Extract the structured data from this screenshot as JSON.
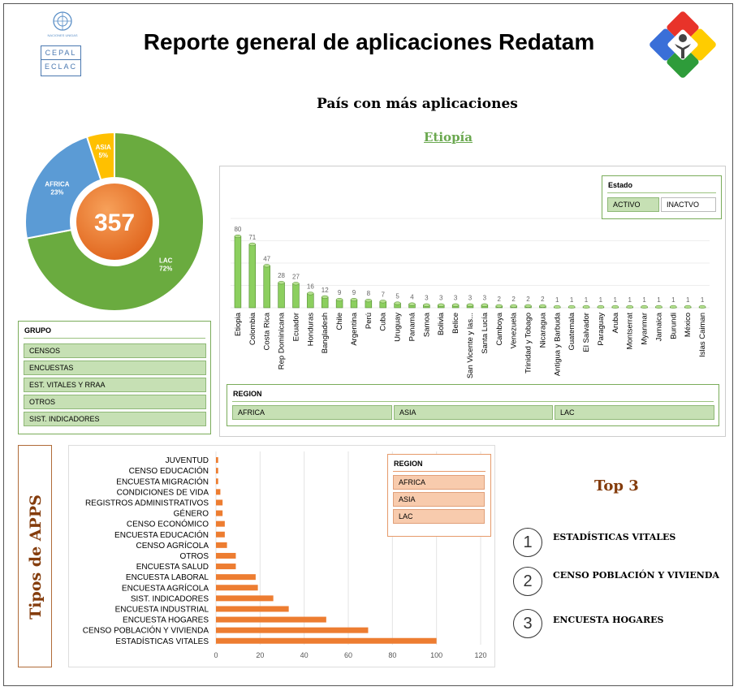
{
  "header": {
    "title": "Reporte general de aplicaciones Redatam",
    "cepal_text": "CEPAL",
    "eclac_text": "ECLAC",
    "un_text": "NACIONES UNIDAS"
  },
  "top_country": {
    "heading": "País con más aplicaciones",
    "name": "Etiopía"
  },
  "donut": {
    "total": "357",
    "segments": [
      {
        "label": "LAC",
        "percent": "72%",
        "value": 72,
        "color": "#6aab3f"
      },
      {
        "label": "AFRICA",
        "percent": "23%",
        "value": 23,
        "color": "#5b9bd5"
      },
      {
        "label": "ASIA",
        "percent": "5%",
        "value": 5,
        "color": "#ffc000"
      }
    ]
  },
  "grupo_slicer": {
    "title": "GRUPO",
    "items": [
      "CENSOS",
      "ENCUESTAS",
      "EST. VITALES  Y RRAA",
      "OTROS",
      "SIST. INDICADORES"
    ]
  },
  "estado_slicer": {
    "title": "Estado",
    "items": [
      "ACTIVO",
      "INACTVO"
    ]
  },
  "region_slicer_top": {
    "title": "REGION",
    "items": [
      "AFRICA",
      "ASIA",
      "LAC"
    ]
  },
  "region_slicer_bottom": {
    "title": "REGION",
    "items": [
      "AFRICA",
      "ASIA",
      "LAC"
    ]
  },
  "side_title": "Tipos de APPS",
  "top3": {
    "title": "Top 3",
    "items": [
      {
        "rank": "1",
        "label": "ESTADÍSTICAS VITALES"
      },
      {
        "rank": "2",
        "label": "CENSO POBLACIÓN Y VIVIENDA"
      },
      {
        "rank": "3",
        "label": "ENCUESTA HOGARES"
      }
    ]
  },
  "chart_data": [
    {
      "type": "pie",
      "title": "",
      "center_label": "357",
      "categories": [
        "LAC",
        "AFRICA",
        "ASIA"
      ],
      "values": [
        72,
        23,
        5
      ],
      "unit": "%"
    },
    {
      "type": "bar",
      "orientation": "vertical",
      "title": "",
      "categories": [
        "Etiopia",
        "Colombia",
        "Costa Rica",
        "Rep Dominicana",
        "Ecuador",
        "Honduras",
        "Bangladesh",
        "Chile",
        "Argentina",
        "Perú",
        "Cuba",
        "Uruguay",
        "Panamá",
        "Samoa",
        "Bolivia",
        "Belice",
        "San Vicente y las...",
        "Santa Lucía",
        "Camboya",
        "Venezuela",
        "Trinidad y Tobago",
        "Nicaragua",
        "Antigua y Barbuda",
        "Guatemala",
        "El Salvador",
        "Paraguay",
        "Aruba",
        "Montserrat",
        "Myanmar",
        "Jamaica",
        "Burundi",
        "México",
        "Islas Caiman"
      ],
      "values": [
        80,
        71,
        47,
        28,
        27,
        16,
        12,
        9,
        9,
        8,
        7,
        5,
        4,
        3,
        3,
        3,
        3,
        3,
        2,
        2,
        2,
        2,
        1,
        1,
        1,
        1,
        1,
        1,
        1,
        1,
        1,
        1,
        1
      ],
      "ylim": [
        0,
        100
      ],
      "color": "#8ccf5f"
    },
    {
      "type": "bar",
      "orientation": "horizontal",
      "title": "",
      "categories": [
        "JUVENTUD",
        "CENSO EDUCACIÓN",
        "ENCUESTA MIGRACIÓN",
        "CONDICIONES DE VIDA",
        "REGISTROS ADMINISTRATIVOS",
        "GÉNERO",
        "CENSO ECONÓMICO",
        "ENCUESTA EDUCACIÓN",
        "CENSO AGRÍCOLA",
        "OTROS",
        "ENCUESTA SALUD",
        "ENCUESTA LABORAL",
        "ENCUESTA AGRÍCOLA",
        "SIST. INDICADORES",
        "ENCUESTA INDUSTRIAL",
        "ENCUESTA HOGARES",
        "CENSO POBLACIÓN Y VIVIENDA",
        "ESTADÍSTICAS VITALES"
      ],
      "values": [
        1,
        1,
        1,
        2,
        3,
        3,
        4,
        4,
        5,
        9,
        9,
        18,
        19,
        26,
        33,
        50,
        69,
        100
      ],
      "xticks": [
        0,
        20,
        40,
        60,
        80,
        100,
        120
      ],
      "xlim": [
        0,
        120
      ],
      "grid": true,
      "color": "#ed7d31"
    }
  ]
}
